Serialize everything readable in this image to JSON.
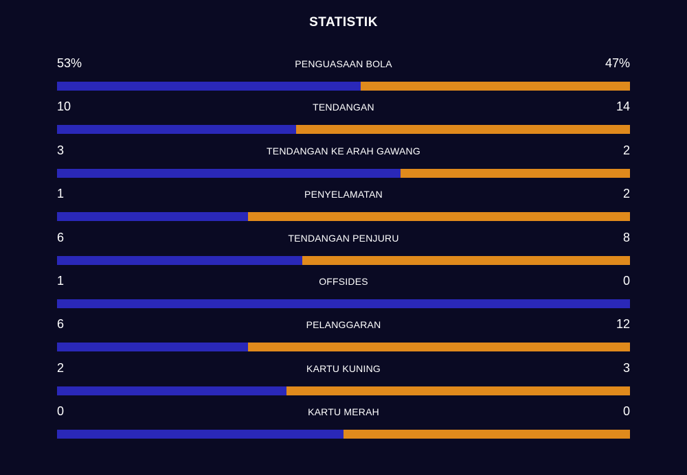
{
  "title": "STATISTIK",
  "colors": {
    "background": "#0a0a23",
    "home_bar": "#2a28b8",
    "away_bar": "#e08a1c"
  },
  "stats": [
    {
      "label": "PENGUASAAN BOLA",
      "home": "53%",
      "away": "47%",
      "home_share": 0.53
    },
    {
      "label": "TENDANGAN",
      "home": "10",
      "away": "14",
      "home_share": 0.4167
    },
    {
      "label": "TENDANGAN KE ARAH GAWANG",
      "home": "3",
      "away": "2",
      "home_share": 0.6
    },
    {
      "label": "PENYELAMATAN",
      "home": "1",
      "away": "2",
      "home_share": 0.3333
    },
    {
      "label": "TENDANGAN PENJURU",
      "home": "6",
      "away": "8",
      "home_share": 0.4286
    },
    {
      "label": "OFFSIDES",
      "home": "1",
      "away": "0",
      "home_share": 1.0
    },
    {
      "label": "PELANGGARAN",
      "home": "6",
      "away": "12",
      "home_share": 0.3333
    },
    {
      "label": "KARTU KUNING",
      "home": "2",
      "away": "3",
      "home_share": 0.4
    },
    {
      "label": "KARTU MERAH",
      "home": "0",
      "away": "0",
      "home_share": 0.5
    }
  ]
}
